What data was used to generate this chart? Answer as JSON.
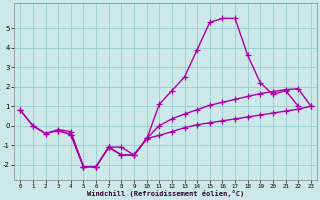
{
  "color": "#aa00aa",
  "bg_color": "#cce8e8",
  "grid_color": "#99cccc",
  "xlabel": "Windchill (Refroidissement éolien,°C)",
  "yticks": [
    -2,
    -1,
    0,
    1,
    2,
    3,
    4,
    5
  ],
  "xticks": [
    0,
    1,
    2,
    3,
    4,
    5,
    6,
    7,
    8,
    9,
    10,
    11,
    12,
    13,
    14,
    15,
    16,
    17,
    18,
    19,
    20,
    21,
    22,
    23
  ],
  "ylim": [
    -2.8,
    6.3
  ],
  "xlim": [
    -0.5,
    23.5
  ],
  "marker": "+",
  "markersize": 4,
  "linewidth": 1.0,
  "lx1": [
    0,
    1,
    2,
    3,
    4,
    5,
    6,
    7,
    8,
    9,
    10,
    11,
    12,
    13,
    14,
    15,
    16,
    17,
    18,
    19,
    20,
    21,
    22
  ],
  "ly1": [
    0.8,
    0.0,
    -0.4,
    -0.2,
    -0.3,
    -2.1,
    -2.1,
    -1.1,
    -1.1,
    -1.5,
    -0.7,
    1.1,
    1.8,
    2.5,
    3.9,
    5.3,
    5.5,
    5.5,
    3.6,
    2.2,
    1.6,
    1.8,
    1.0
  ],
  "lx2": [
    0,
    1,
    2,
    3,
    4,
    5,
    6,
    7,
    8,
    9,
    10,
    11,
    12,
    13,
    14,
    15,
    16,
    17,
    18,
    19,
    20,
    21,
    22,
    23
  ],
  "ly2": [
    0.8,
    0.0,
    -0.4,
    -0.25,
    -0.45,
    -2.1,
    -2.1,
    -1.1,
    -1.5,
    -1.5,
    -0.65,
    0.0,
    0.35,
    0.6,
    0.82,
    1.05,
    1.2,
    1.35,
    1.5,
    1.65,
    1.75,
    1.85,
    1.9,
    1.0
  ],
  "lx3": [
    3,
    4,
    5,
    6,
    7,
    8,
    9,
    10,
    11,
    12,
    13,
    14,
    15,
    16,
    17,
    18,
    19,
    20,
    21,
    22,
    23
  ],
  "ly3": [
    -0.25,
    -0.45,
    -2.1,
    -2.1,
    -1.1,
    -1.5,
    -1.5,
    -0.65,
    -0.5,
    -0.3,
    -0.1,
    0.05,
    0.15,
    0.25,
    0.35,
    0.45,
    0.55,
    0.65,
    0.75,
    0.85,
    1.0
  ]
}
